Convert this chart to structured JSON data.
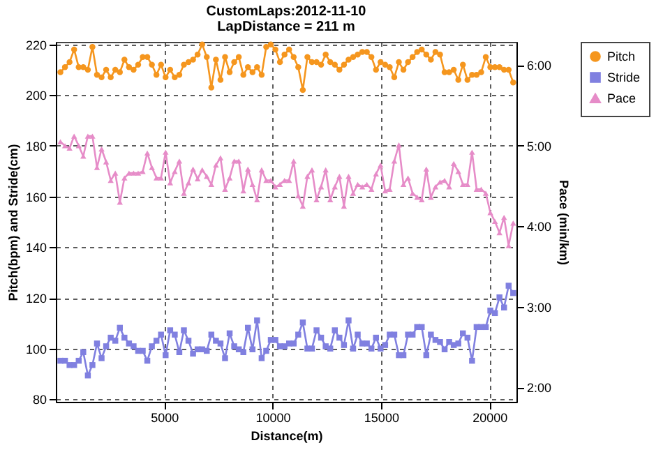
{
  "chart_data": {
    "type": "line",
    "title": "CustomLaps:2012-11-10",
    "subtitle": "LapDistance = 211 m",
    "xlabel": "Distance(m)",
    "ylabel": "Pitch(bpm) and Stride(cm)",
    "y2label": "Pace (min/km)",
    "x": [
      211,
      422,
      633,
      844,
      1055,
      1266,
      1477,
      1688,
      1899,
      2110,
      2321,
      2532,
      2743,
      2954,
      3165,
      3376,
      3587,
      3798,
      4009,
      4220,
      4431,
      4642,
      4853,
      5064,
      5275,
      5486,
      5697,
      5908,
      6119,
      6330,
      6541,
      6752,
      6963,
      7174,
      7385,
      7596,
      7807,
      8018,
      8229,
      8440,
      8651,
      8862,
      9073,
      9284,
      9495,
      9706,
      9917,
      10128,
      10339,
      10550,
      10761,
      10972,
      11183,
      11394,
      11605,
      11816,
      12027,
      12238,
      12449,
      12660,
      12871,
      13082,
      13293,
      13504,
      13715,
      13926,
      14137,
      14348,
      14559,
      14770,
      14981,
      15192,
      15403,
      15614,
      15825,
      16036,
      16247,
      16458,
      16669,
      16880,
      17091,
      17302,
      17513,
      17724,
      17935,
      18146,
      18357,
      18568,
      18779,
      18990,
      19201,
      19412,
      19623,
      19834,
      20045,
      20256,
      20467,
      20678,
      20889,
      21100
    ],
    "series": [
      {
        "name": "Pitch",
        "color": "#f5961e",
        "marker": "circle",
        "values": [
          209,
          211,
          213,
          218,
          211,
          211,
          210,
          219,
          208,
          207,
          210,
          207,
          210,
          209,
          214,
          211,
          210,
          212,
          215,
          215,
          212,
          208,
          212,
          207,
          210,
          207,
          208,
          212,
          213,
          214,
          216,
          220,
          215,
          203,
          214,
          206,
          215,
          209,
          213,
          215,
          208,
          211,
          209,
          211,
          208,
          219,
          220,
          218,
          213,
          216,
          218,
          215,
          211,
          202,
          215,
          213,
          213,
          212,
          216,
          213,
          212,
          210,
          212,
          214,
          215,
          216,
          217,
          217,
          215,
          210,
          213,
          212,
          211,
          207,
          213,
          210,
          213,
          215,
          217,
          218,
          216,
          214,
          217,
          216,
          209,
          209,
          210,
          206,
          212,
          206,
          208,
          208,
          209,
          215,
          211,
          211,
          211,
          210,
          210,
          205
        ]
      },
      {
        "name": "Stride",
        "color": "#8080e0",
        "marker": "square",
        "values": [
          95.2,
          95.2,
          93.5,
          93.5,
          95.2,
          98.6,
          89.4,
          93.5,
          102,
          96.2,
          100.9,
          104.3,
          103.1,
          108.2,
          104.3,
          102,
          100.9,
          99.1,
          99.1,
          95.2,
          100.9,
          103.1,
          105.5,
          97.4,
          107.2,
          105.5,
          98.6,
          107.2,
          103.1,
          98,
          99.7,
          99.7,
          99.1,
          105.5,
          103.1,
          102,
          96.2,
          106,
          100.9,
          99.7,
          98.6,
          108.2,
          99.7,
          111.1,
          96.2,
          99.1,
          103.4,
          103.4,
          100.9,
          100.9,
          102,
          102,
          105.5,
          110.3,
          100,
          100,
          107.2,
          104.3,
          100.9,
          100,
          107.2,
          104.3,
          101.4,
          111.1,
          100,
          105.5,
          102,
          102,
          100,
          104.3,
          100,
          101.4,
          105.5,
          105.5,
          97.4,
          97.4,
          105.5,
          105.5,
          108.5,
          108.5,
          97.4,
          105.5,
          103.4,
          102.6,
          99.7,
          102.6,
          101.4,
          102,
          106,
          104.3,
          95.2,
          108.5,
          108.5,
          108.5,
          115,
          114,
          120.2,
          116.2,
          124.8,
          121.9
        ]
      },
      {
        "name": "Pace",
        "color": "#e68cc8",
        "marker": "triangle",
        "axis": "y2",
        "values": [
          5.05,
          5.0,
          4.97,
          5.12,
          5.0,
          4.87,
          5.12,
          5.12,
          4.73,
          4.96,
          4.8,
          4.57,
          4.66,
          4.3,
          4.6,
          4.66,
          4.66,
          4.66,
          4.68,
          4.91,
          4.73,
          4.6,
          4.6,
          4.92,
          4.54,
          4.68,
          4.81,
          4.41,
          4.54,
          4.71,
          4.59,
          4.7,
          4.62,
          4.52,
          4.76,
          4.85,
          4.46,
          4.6,
          4.81,
          4.81,
          4.44,
          4.71,
          4.52,
          4.33,
          4.7,
          4.57,
          4.57,
          4.49,
          4.52,
          4.57,
          4.57,
          4.81,
          4.38,
          4.25,
          4.62,
          4.7,
          4.33,
          4.49,
          4.7,
          4.33,
          4.49,
          4.62,
          4.25,
          4.62,
          4.41,
          4.52,
          4.49,
          4.52,
          4.46,
          4.65,
          4.76,
          4.44,
          4.46,
          4.81,
          5.01,
          4.52,
          4.6,
          4.41,
          4.36,
          4.33,
          4.71,
          4.36,
          4.49,
          4.55,
          4.57,
          4.49,
          4.78,
          4.68,
          4.52,
          4.52,
          4.92,
          4.46,
          4.46,
          4.41,
          4.17,
          4.06,
          3.92,
          4.11,
          3.76,
          4.04
        ]
      }
    ],
    "xlim": [
      0,
      21250
    ],
    "xticks": [
      5000,
      10000,
      15000,
      20000
    ],
    "ylim": [
      79,
      221
    ],
    "yticks": [
      80,
      100,
      120,
      140,
      160,
      180,
      200,
      220
    ],
    "y2lim": [
      1.82,
      6.29
    ],
    "y2ticks": [
      {
        "value": 2,
        "label": "2:00"
      },
      {
        "value": 3,
        "label": "3:00"
      },
      {
        "value": 4,
        "label": "4:00"
      },
      {
        "value": 5,
        "label": "5:00"
      },
      {
        "value": 6,
        "label": "6:00"
      }
    ],
    "grid": true,
    "legend": "top right",
    "line_style": "solid"
  }
}
